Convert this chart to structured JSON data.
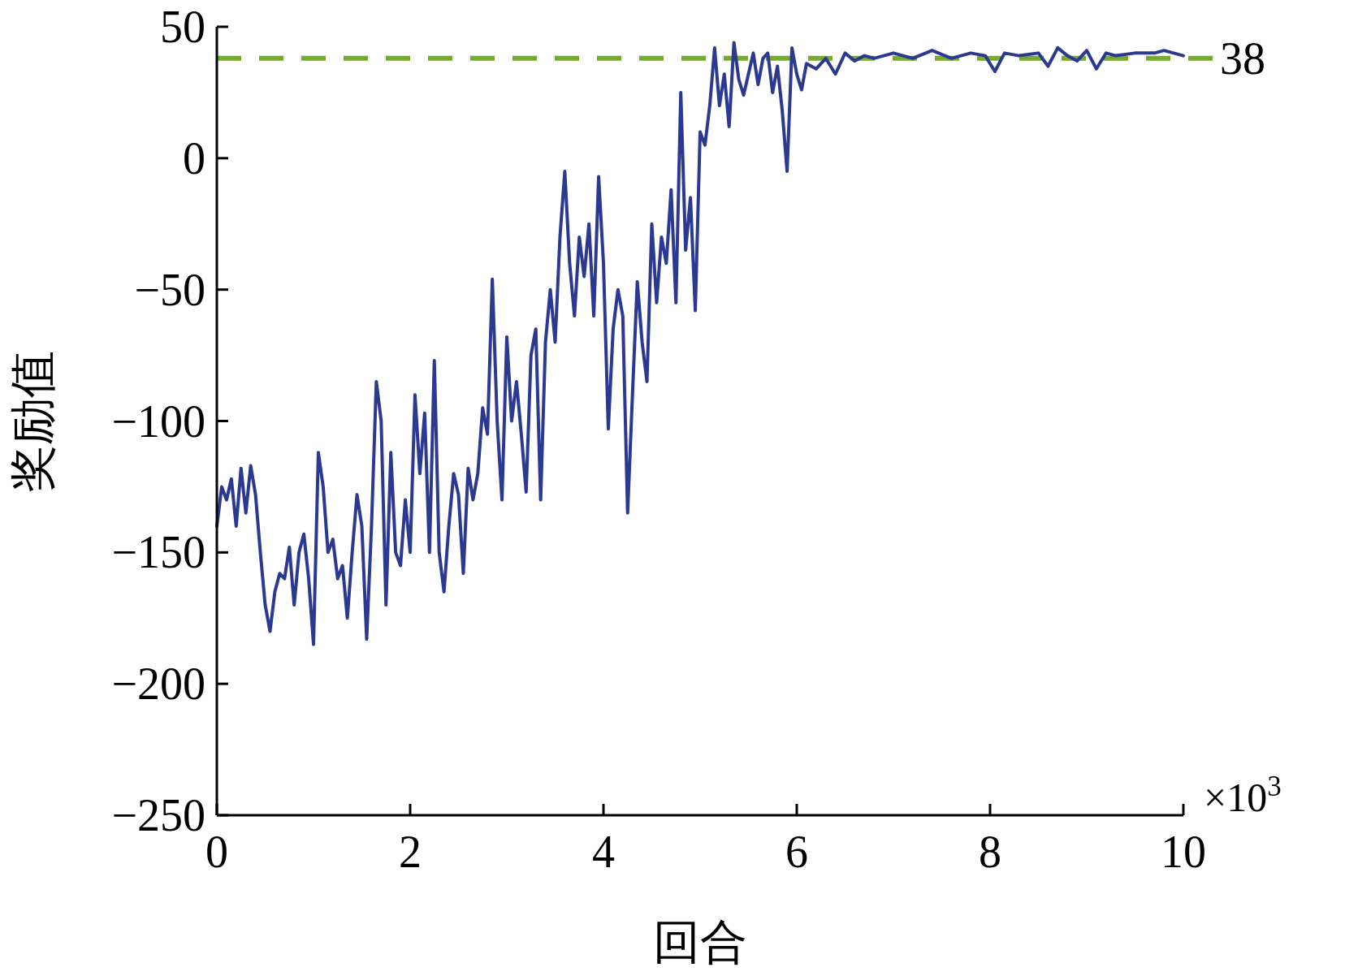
{
  "chart_data": {
    "type": "line",
    "xlabel": "回合",
    "ylabel": "奖励值",
    "x": [
      0,
      0.05,
      0.1,
      0.15,
      0.2,
      0.25,
      0.3,
      0.35,
      0.4,
      0.45,
      0.5,
      0.55,
      0.6,
      0.65,
      0.7,
      0.75,
      0.8,
      0.85,
      0.9,
      0.95,
      1.0,
      1.05,
      1.1,
      1.15,
      1.2,
      1.25,
      1.3,
      1.35,
      1.4,
      1.45,
      1.5,
      1.55,
      1.6,
      1.65,
      1.7,
      1.75,
      1.8,
      1.85,
      1.9,
      1.95,
      2.0,
      2.05,
      2.1,
      2.15,
      2.2,
      2.25,
      2.3,
      2.35,
      2.4,
      2.45,
      2.5,
      2.55,
      2.6,
      2.65,
      2.7,
      2.75,
      2.8,
      2.85,
      2.9,
      2.95,
      3.0,
      3.05,
      3.1,
      3.15,
      3.2,
      3.25,
      3.3,
      3.35,
      3.4,
      3.45,
      3.5,
      3.55,
      3.6,
      3.65,
      3.7,
      3.75,
      3.8,
      3.85,
      3.9,
      3.95,
      4.0,
      4.05,
      4.1,
      4.15,
      4.2,
      4.25,
      4.3,
      4.35,
      4.4,
      4.45,
      4.5,
      4.55,
      4.6,
      4.65,
      4.7,
      4.75,
      4.8,
      4.85,
      4.9,
      4.95,
      5.0,
      5.05,
      5.1,
      5.15,
      5.2,
      5.25,
      5.3,
      5.35,
      5.4,
      5.45,
      5.5,
      5.55,
      5.6,
      5.65,
      5.7,
      5.75,
      5.8,
      5.85,
      5.9,
      5.95,
      6.0,
      6.05,
      6.1,
      6.2,
      6.3,
      6.4,
      6.5,
      6.6,
      6.7,
      6.8,
      7.0,
      7.2,
      7.4,
      7.6,
      7.8,
      7.95,
      8.05,
      8.15,
      8.3,
      8.5,
      8.6,
      8.7,
      8.8,
      8.9,
      9.0,
      9.1,
      9.2,
      9.3,
      9.5,
      9.7,
      9.8,
      9.9,
      10.0
    ],
    "series": [
      {
        "color": "#2b3990",
        "values": [
          -140,
          -125,
          -130,
          -122,
          -140,
          -118,
          -135,
          -117,
          -128,
          -150,
          -170,
          -180,
          -165,
          -158,
          -160,
          -148,
          -170,
          -150,
          -143,
          -160,
          -185,
          -112,
          -125,
          -150,
          -145,
          -160,
          -155,
          -175,
          -150,
          -128,
          -140,
          -183,
          -140,
          -85,
          -100,
          -170,
          -112,
          -150,
          -155,
          -130,
          -150,
          -90,
          -120,
          -97,
          -150,
          -77,
          -150,
          -165,
          -140,
          -120,
          -128,
          -158,
          -118,
          -130,
          -120,
          -95,
          -105,
          -46,
          -100,
          -130,
          -68,
          -100,
          -85,
          -105,
          -127,
          -75,
          -65,
          -130,
          -70,
          -50,
          -70,
          -30,
          -5,
          -40,
          -60,
          -30,
          -45,
          -25,
          -60,
          -7,
          -40,
          -103,
          -65,
          -50,
          -60,
          -135,
          -90,
          -47,
          -70,
          -85,
          -25,
          -55,
          -30,
          -40,
          -12,
          -55,
          25,
          -35,
          -15,
          -58,
          10,
          5,
          20,
          42,
          20,
          32,
          12,
          44,
          30,
          24,
          32,
          40,
          28,
          38,
          40,
          25,
          35,
          18,
          -5,
          42,
          32,
          26,
          36,
          34,
          38,
          32,
          40,
          37,
          39,
          38,
          40,
          38,
          41,
          38,
          40,
          39,
          33,
          40,
          39,
          40,
          35,
          42,
          39,
          37,
          41,
          34,
          40,
          39,
          40,
          40,
          41,
          40,
          39
        ]
      }
    ],
    "xlim": [
      0,
      10
    ],
    "xticks": [
      0,
      2,
      4,
      6,
      8,
      10
    ],
    "ylim": [
      -250,
      50
    ],
    "yticks": [
      -250,
      -200,
      -150,
      -100,
      -50,
      0,
      50
    ],
    "ref_lines": [
      {
        "axis": "y",
        "value": 38,
        "label": "38",
        "color": "#77ac30",
        "line_style": "dashed"
      }
    ],
    "annotations": [
      "×10$^{3}$"
    ],
    "grid": false,
    "marker": "none",
    "line_style": "solid"
  }
}
